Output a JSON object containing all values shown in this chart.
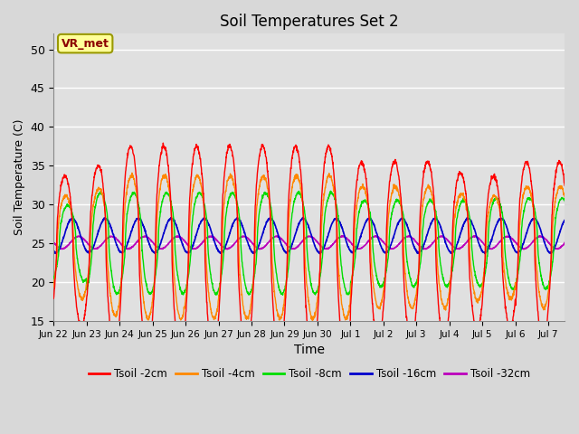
{
  "title": "Soil Temperatures Set 2",
  "xlabel": "Time",
  "ylabel": "Soil Temperature (C)",
  "ylim": [
    15,
    52
  ],
  "yticks": [
    15,
    20,
    25,
    30,
    35,
    40,
    45,
    50
  ],
  "fig_bg_color": "#d8d8d8",
  "plot_bg_color": "#e0e0e0",
  "grid_color": "#ffffff",
  "annotation_text": "VR_met",
  "annotation_bg": "#ffff99",
  "annotation_border": "#999900",
  "colors": {
    "2cm": "#ff0000",
    "4cm": "#ff8800",
    "8cm": "#00dd00",
    "16cm": "#0000cc",
    "32cm": "#bb00bb"
  },
  "legend_labels": [
    "Tsoil -2cm",
    "Tsoil -4cm",
    "Tsoil -8cm",
    "Tsoil -16cm",
    "Tsoil -32cm"
  ],
  "n_days": 15.5,
  "tick_days": [
    0,
    1,
    2,
    3,
    4,
    5,
    6,
    7,
    8,
    9,
    10,
    11,
    12,
    13,
    14,
    15
  ],
  "tick_labels": [
    "Jun 22",
    "Jun 23",
    "Jun 24",
    "Jun 25",
    "Jun 26",
    "Jun 27",
    "Jun 28",
    "Jun 29",
    "Jun 30",
    "Jul 1",
    "Jul 2",
    "Jul 3",
    "Jul 4",
    "Jul 5",
    "Jul 6",
    "Jul 7"
  ]
}
